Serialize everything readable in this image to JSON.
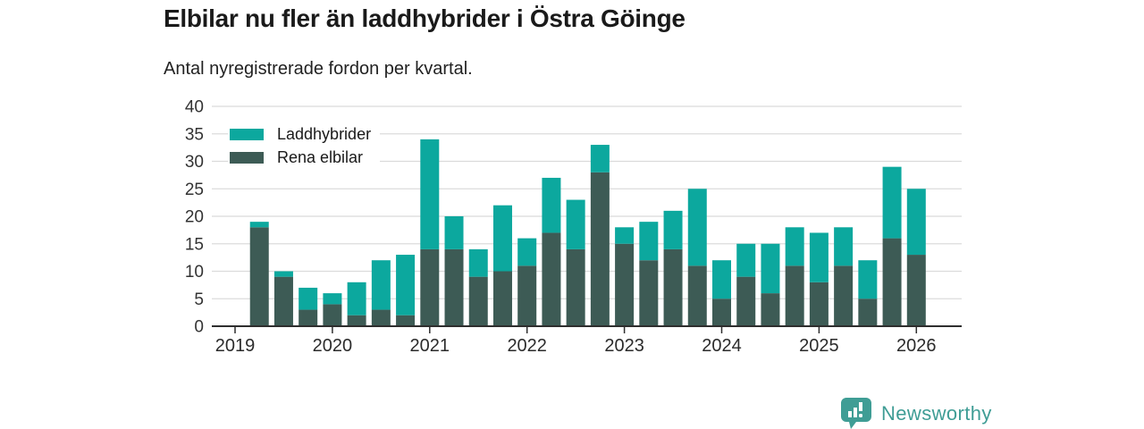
{
  "chart_data": {
    "type": "bar",
    "stacked": true,
    "title": "Elbilar nu fler än laddhybrider i Östra Göinge",
    "subtitle": "Antal nyregistrerade fordon per kvartal.",
    "categories": [
      "2019-Q2",
      "2019-Q3",
      "2019-Q4",
      "2020-Q1",
      "2020-Q2",
      "2020-Q3",
      "2020-Q4",
      "2021-Q1",
      "2021-Q2",
      "2021-Q3",
      "2021-Q4",
      "2022-Q1",
      "2022-Q2",
      "2022-Q3",
      "2022-Q4",
      "2023-Q1",
      "2023-Q2",
      "2023-Q3",
      "2023-Q4",
      "2024-Q1",
      "2024-Q2",
      "2024-Q3",
      "2024-Q4",
      "2025-Q1",
      "2025-Q2",
      "2025-Q3",
      "2025-Q4",
      "2026-Q1"
    ],
    "x_tick_labels": [
      "2019",
      "2020",
      "2021",
      "2022",
      "2023",
      "2024",
      "2025",
      "2026"
    ],
    "series": [
      {
        "name": "Laddhybrider",
        "color": "#0CA89E",
        "stack": "top",
        "values": [
          1,
          1,
          4,
          2,
          6,
          9,
          11,
          20,
          6,
          5,
          12,
          5,
          10,
          9,
          5,
          3,
          7,
          7,
          14,
          7,
          6,
          9,
          7,
          9,
          7,
          7,
          13,
          12
        ]
      },
      {
        "name": "Rena elbilar",
        "color": "#3D5B55",
        "stack": "bottom",
        "values": [
          18,
          9,
          3,
          4,
          2,
          3,
          2,
          14,
          14,
          9,
          10,
          11,
          17,
          14,
          28,
          15,
          12,
          14,
          11,
          5,
          9,
          6,
          11,
          8,
          11,
          5,
          16,
          13
        ]
      }
    ],
    "totals": [
      19,
      10,
      7,
      6,
      8,
      12,
      13,
      34,
      20,
      14,
      22,
      16,
      27,
      23,
      33,
      18,
      19,
      21,
      25,
      12,
      15,
      15,
      18,
      17,
      18,
      12,
      29,
      25
    ],
    "ylim": [
      0,
      40
    ],
    "ytick_step": 5,
    "grid": "horizontal",
    "legend_position": "top-left",
    "axis_color": "#2E2E2E",
    "gridline_color": "#DBDBDB",
    "tick_label_color": "#333333"
  },
  "branding": {
    "name": "Newsworthy",
    "color": "#3F9D95",
    "icon": "newsworthy-bar-chart-bubble"
  }
}
